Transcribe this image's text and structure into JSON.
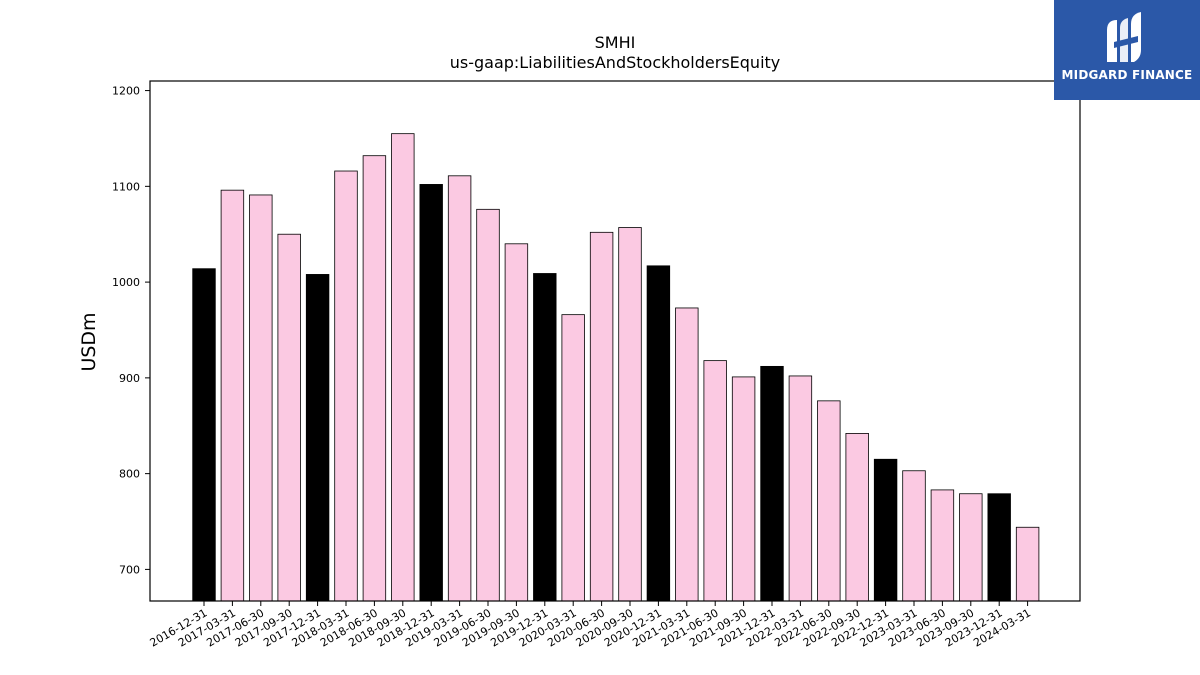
{
  "chart_data": {
    "type": "bar",
    "title": "SMHI",
    "subtitle": "us-gaap:LiabilitiesAndStockholdersEquity",
    "xlabel": "",
    "ylabel": "USDm",
    "ylim": [
      667,
      1210
    ],
    "yticks": [
      700,
      800,
      900,
      1000,
      1100,
      1200
    ],
    "grid": false,
    "categories": [
      "2016-12-31",
      "2017-03-31",
      "2017-06-30",
      "2017-09-30",
      "2017-12-31",
      "2018-03-31",
      "2018-06-30",
      "2018-09-30",
      "2018-12-31",
      "2019-03-31",
      "2019-06-30",
      "2019-09-30",
      "2019-12-31",
      "2020-03-31",
      "2020-06-30",
      "2020-09-30",
      "2020-12-31",
      "2021-03-31",
      "2021-06-30",
      "2021-09-30",
      "2021-12-31",
      "2022-03-31",
      "2022-06-30",
      "2022-09-30",
      "2022-12-31",
      "2023-03-31",
      "2023-06-30",
      "2023-09-30",
      "2023-12-31",
      "2024-03-31"
    ],
    "values": [
      1014,
      1096,
      1091,
      1050,
      1008,
      1116,
      1132,
      1155,
      1102,
      1111,
      1076,
      1040,
      1009,
      966,
      1052,
      1057,
      1017,
      973,
      918,
      901,
      912,
      902,
      876,
      842,
      815,
      803,
      783,
      779,
      779,
      744
    ],
    "colors": {
      "annual": "#000000",
      "quarterly": "#fbc9e2",
      "edge": "#000000"
    },
    "annual_indices": [
      0,
      4,
      8,
      12,
      16,
      20,
      24,
      28
    ]
  },
  "logo": {
    "text": "MIDGARD FINANCE",
    "background": "#2b58a8"
  }
}
